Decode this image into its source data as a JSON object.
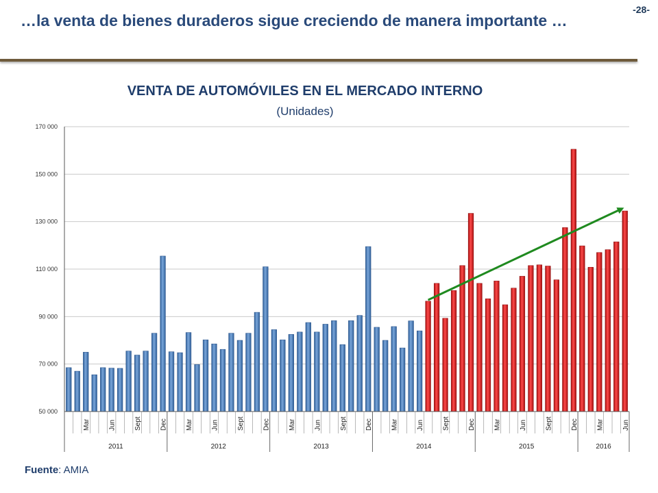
{
  "page": {
    "number": "-28-",
    "title": "…la venta de bienes duraderos sigue creciendo de manera importante …",
    "source_label": "Fuente",
    "source_value": ": AMIA"
  },
  "chart_data": {
    "type": "bar",
    "title": "VENTA DE AUTOMÓVILES EN EL MERCADO INTERNO",
    "subtitle": "(Unidades)",
    "ylim": [
      50000,
      170000
    ],
    "yticks": [
      50000,
      70000,
      90000,
      110000,
      130000,
      150000,
      170000
    ],
    "ytick_labels": [
      "50 000",
      "70 000",
      "90 000",
      "110 000",
      "130 000",
      "150 000",
      "170 000"
    ],
    "grid": true,
    "years": [
      {
        "label": "2011",
        "months": 12
      },
      {
        "label": "2012",
        "months": 12
      },
      {
        "label": "2013",
        "months": 12
      },
      {
        "label": "2014",
        "months": 12
      },
      {
        "label": "2015",
        "months": 12
      },
      {
        "label": "2016",
        "months": 6
      }
    ],
    "month_labels": {
      "2": "Mar",
      "5": "Jun",
      "8": "Sept",
      "11": "Dec"
    },
    "values": [
      68500,
      67000,
      75000,
      65500,
      68500,
      68300,
      68200,
      75500,
      73800,
      75500,
      83000,
      115500,
      75200,
      74800,
      83300,
      69800,
      80200,
      78500,
      76200,
      83000,
      80000,
      83000,
      91800,
      111000,
      84500,
      80200,
      82500,
      83500,
      87500,
      83500,
      86800,
      88300,
      78200,
      88300,
      90500,
      119500,
      85500,
      80000,
      85800,
      76800,
      88200,
      84000,
      96500,
      104000,
      89300,
      101000,
      111500,
      133500,
      104000,
      97500,
      105000,
      95000,
      102000,
      107000,
      111500,
      111800,
      111300,
      105500,
      127500,
      160500,
      119800,
      110800,
      117000,
      118200,
      121500,
      134500
    ],
    "highlight_from_index": 42,
    "colors": {
      "base": "#4f81bd",
      "highlight": "#d31f1f",
      "trend": "#1f8a1f"
    },
    "trend": {
      "from": {
        "index": 42,
        "value": 97000
      },
      "to": {
        "index": 65,
        "value": 135500
      }
    }
  }
}
